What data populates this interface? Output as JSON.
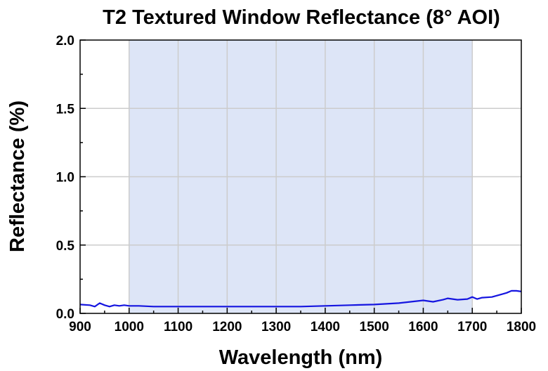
{
  "chart_data": {
    "type": "line",
    "title": "T2 Textured Window Reflectance (8° AOI)",
    "xlabel": "Wavelength (nm)",
    "ylabel": "Reflectance (%)",
    "xlim": [
      900,
      1800
    ],
    "ylim": [
      0,
      2.0
    ],
    "xticks": [
      "900",
      "1000",
      "1100",
      "1200",
      "1300",
      "1400",
      "1500",
      "1600",
      "1700",
      "1800"
    ],
    "yticks": [
      "0.0",
      "0.5",
      "1.0",
      "1.5",
      "2.0"
    ],
    "grid": true,
    "legend": "none",
    "highlight_band": [
      1000,
      1700
    ],
    "series": [
      {
        "color": "#1515e0",
        "x": [
          900,
          920,
          930,
          940,
          950,
          960,
          970,
          980,
          990,
          1000,
          1020,
          1050,
          1100,
          1150,
          1200,
          1250,
          1300,
          1350,
          1400,
          1450,
          1500,
          1550,
          1600,
          1620,
          1640,
          1650,
          1670,
          1690,
          1700,
          1710,
          1720,
          1740,
          1760,
          1770,
          1780,
          1790,
          1800
        ],
        "y": [
          0.065,
          0.06,
          0.05,
          0.075,
          0.06,
          0.05,
          0.06,
          0.055,
          0.06,
          0.055,
          0.055,
          0.05,
          0.05,
          0.05,
          0.05,
          0.05,
          0.05,
          0.05,
          0.055,
          0.06,
          0.065,
          0.075,
          0.095,
          0.085,
          0.1,
          0.11,
          0.1,
          0.105,
          0.12,
          0.105,
          0.115,
          0.12,
          0.14,
          0.15,
          0.165,
          0.165,
          0.16
        ]
      }
    ]
  },
  "colors": {
    "band_fill": "#dde5f7",
    "grid": "#cccccc",
    "axis": "#000000"
  }
}
